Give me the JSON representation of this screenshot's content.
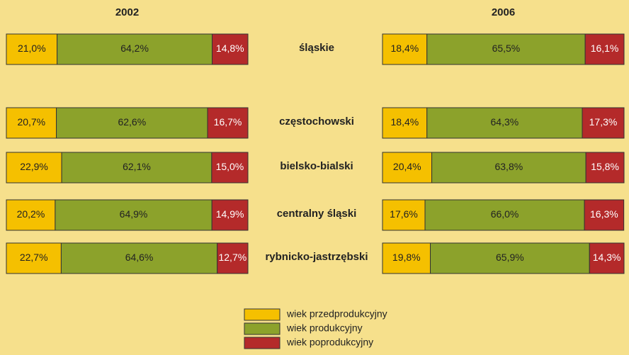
{
  "chart_data": {
    "type": "bar",
    "stacked": true,
    "categories": [
      "śląskie",
      "częstochowski",
      "bielsko-bialski",
      "centralny śląski",
      "rybnicko-jastrzębski"
    ],
    "legend": [
      {
        "name": "wiek przedprodukcyjny",
        "color": "#f5c000"
      },
      {
        "name": "wiek produkcyjny",
        "color": "#8ca22b"
      },
      {
        "name": "wiek poprodukcyjny",
        "color": "#b42a2a"
      }
    ],
    "panels": [
      {
        "title": "2002",
        "xlim": [
          0,
          100
        ],
        "series": [
          {
            "values": [
              21.0,
              20.7,
              22.9,
              20.2,
              22.7
            ],
            "value_labels": [
              "21,0%",
              "20,7%",
              "22,9%",
              "20,2%",
              "22,7%"
            ]
          },
          {
            "values": [
              64.2,
              62.6,
              62.1,
              64.9,
              64.6
            ],
            "value_labels": [
              "64,2%",
              "62,6%",
              "62,1%",
              "64,9%",
              "64,6%"
            ]
          },
          {
            "values": [
              14.8,
              16.7,
              15.0,
              14.9,
              12.7
            ],
            "value_labels": [
              "14,8%",
              "16,7%",
              "15,0%",
              "14,9%",
              "12,7%"
            ]
          }
        ]
      },
      {
        "title": "2006",
        "xlim": [
          0,
          100
        ],
        "series": [
          {
            "values": [
              18.4,
              18.4,
              20.4,
              17.6,
              19.8
            ],
            "value_labels": [
              "18,4%",
              "18,4%",
              "20,4%",
              "17,6%",
              "19,8%"
            ]
          },
          {
            "values": [
              65.5,
              64.3,
              63.8,
              66.0,
              65.9
            ],
            "value_labels": [
              "65,5%",
              "64,3%",
              "63,8%",
              "66,0%",
              "65,9%"
            ]
          },
          {
            "values": [
              16.1,
              17.3,
              15.8,
              16.3,
              14.3
            ],
            "value_labels": [
              "16,1%",
              "17,3%",
              "15,8%",
              "16,3%",
              "14,3%"
            ]
          }
        ]
      }
    ]
  }
}
